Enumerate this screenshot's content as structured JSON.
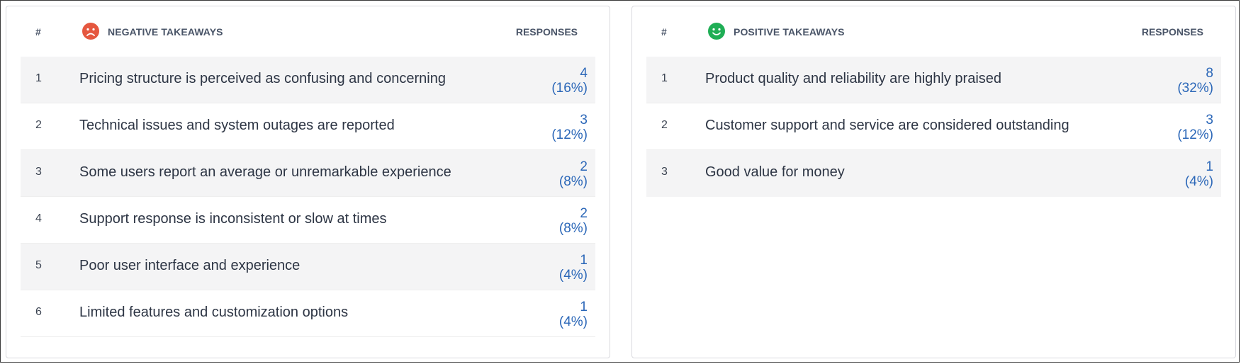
{
  "negative": {
    "hash_label": "#",
    "title": "NEGATIVE TAKEAWAYS",
    "responses_label": "RESPONSES",
    "mood_icon": "sad-face-icon",
    "accent": "#e5573f",
    "rows": [
      {
        "num": "1",
        "text": "Pricing structure is perceived as confusing and concerning",
        "count": "4",
        "pct": "(16%)"
      },
      {
        "num": "2",
        "text": "Technical issues and system outages are reported",
        "count": "3",
        "pct": "(12%)"
      },
      {
        "num": "3",
        "text": "Some users report an average or unremarkable experience",
        "count": "2",
        "pct": "(8%)"
      },
      {
        "num": "4",
        "text": "Support response is inconsistent or slow at times",
        "count": "2",
        "pct": "(8%)"
      },
      {
        "num": "5",
        "text": "Poor user interface and experience",
        "count": "1",
        "pct": "(4%)"
      },
      {
        "num": "6",
        "text": "Limited features and customization options",
        "count": "1",
        "pct": "(4%)"
      }
    ]
  },
  "positive": {
    "hash_label": "#",
    "title": "POSITIVE TAKEAWAYS",
    "responses_label": "RESPONSES",
    "mood_icon": "happy-face-icon",
    "accent": "#1fae55",
    "rows": [
      {
        "num": "1",
        "text": "Product quality and reliability are highly praised",
        "count": "8",
        "pct": "(32%)"
      },
      {
        "num": "2",
        "text": "Customer support and service are considered outstanding",
        "count": "3",
        "pct": "(12%)"
      },
      {
        "num": "3",
        "text": "Good value for money",
        "count": "1",
        "pct": "(4%)"
      }
    ]
  }
}
